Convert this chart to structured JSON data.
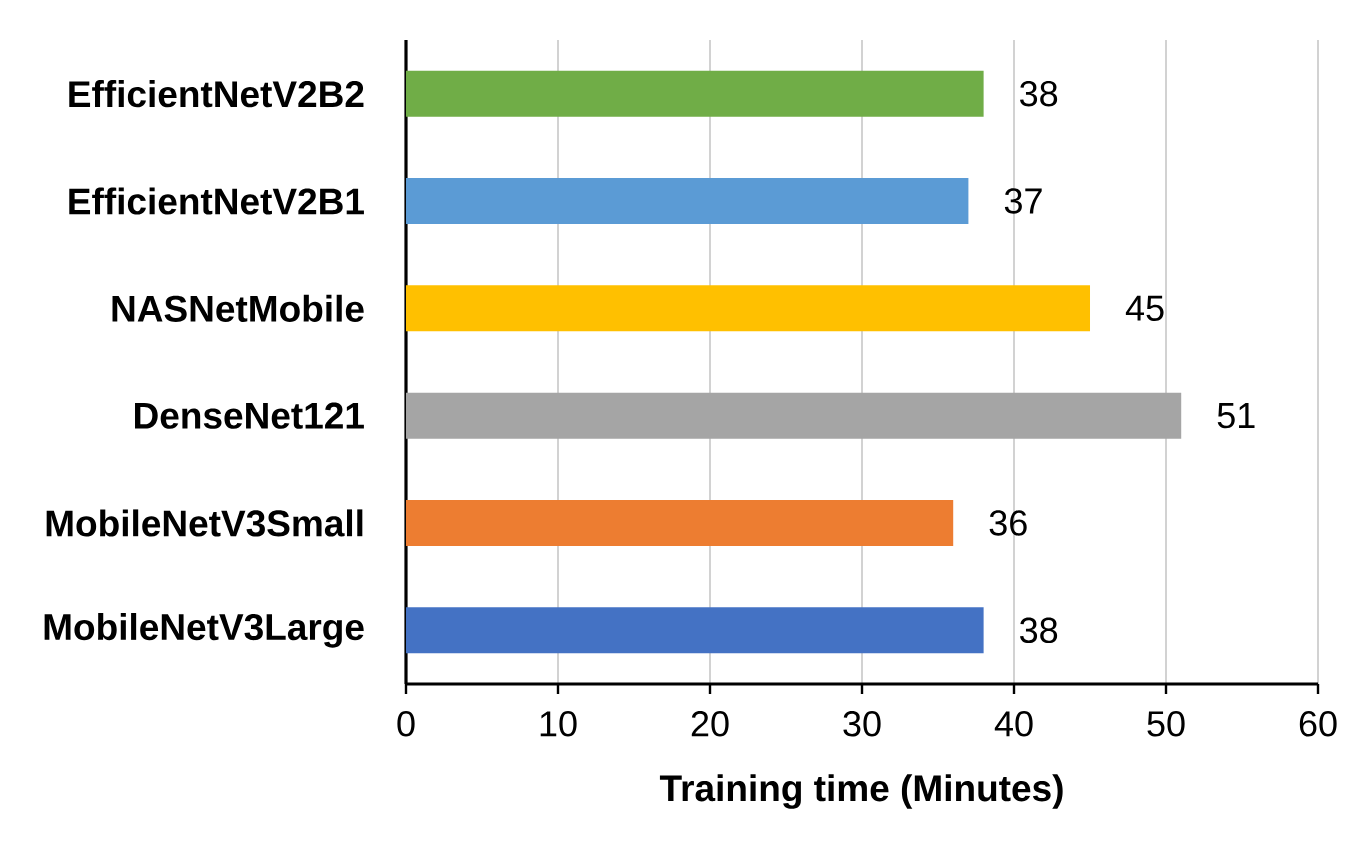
{
  "chart_data": {
    "type": "bar",
    "orientation": "horizontal",
    "xlabel": "Training time (Minutes)",
    "categories": [
      "EfficientNetV2B2",
      "EfficientNetV2B1",
      "NASNetMobile",
      "DenseNet121",
      "MobileNetV3Small",
      "MobileNetV3Large"
    ],
    "values": [
      38,
      37,
      45,
      51,
      36,
      38
    ],
    "colors": [
      "#70ad47",
      "#5b9bd5",
      "#ffc000",
      "#a5a5a5",
      "#ed7d31",
      "#4472c4"
    ],
    "xlim": [
      0,
      60
    ],
    "xticks": [
      0,
      10,
      20,
      30,
      40,
      50,
      60
    ],
    "grid": "x",
    "data_labels": true
  }
}
